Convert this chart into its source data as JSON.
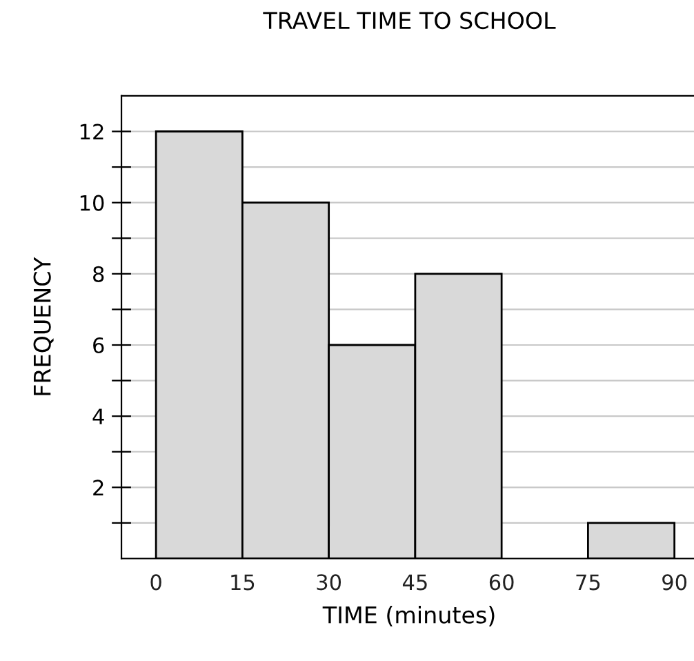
{
  "chart_data": {
    "type": "histogram",
    "title": "TRAVEL TIME TO SCHOOL",
    "xlabel": "TIME (minutes)",
    "ylabel": "FREQUENCY",
    "bins": [
      0,
      15,
      30,
      45,
      60,
      75,
      90
    ],
    "values": [
      12,
      10,
      6,
      8,
      0,
      1
    ],
    "color": "#d9d9d9",
    "xlim": [
      -6,
      94
    ],
    "xticks": [
      0,
      15,
      30,
      45,
      60,
      75,
      90
    ],
    "ylim": [
      0,
      13
    ],
    "yticks": [
      {
        "value": 1,
        "label": null
      },
      2,
      {
        "value": 3,
        "label": null
      },
      4,
      {
        "value": 5,
        "label": null
      },
      6,
      {
        "value": 7,
        "label": null
      },
      8,
      {
        "value": 9,
        "label": null
      },
      10,
      {
        "value": 11,
        "label": null
      },
      12
    ],
    "grid": "y"
  }
}
